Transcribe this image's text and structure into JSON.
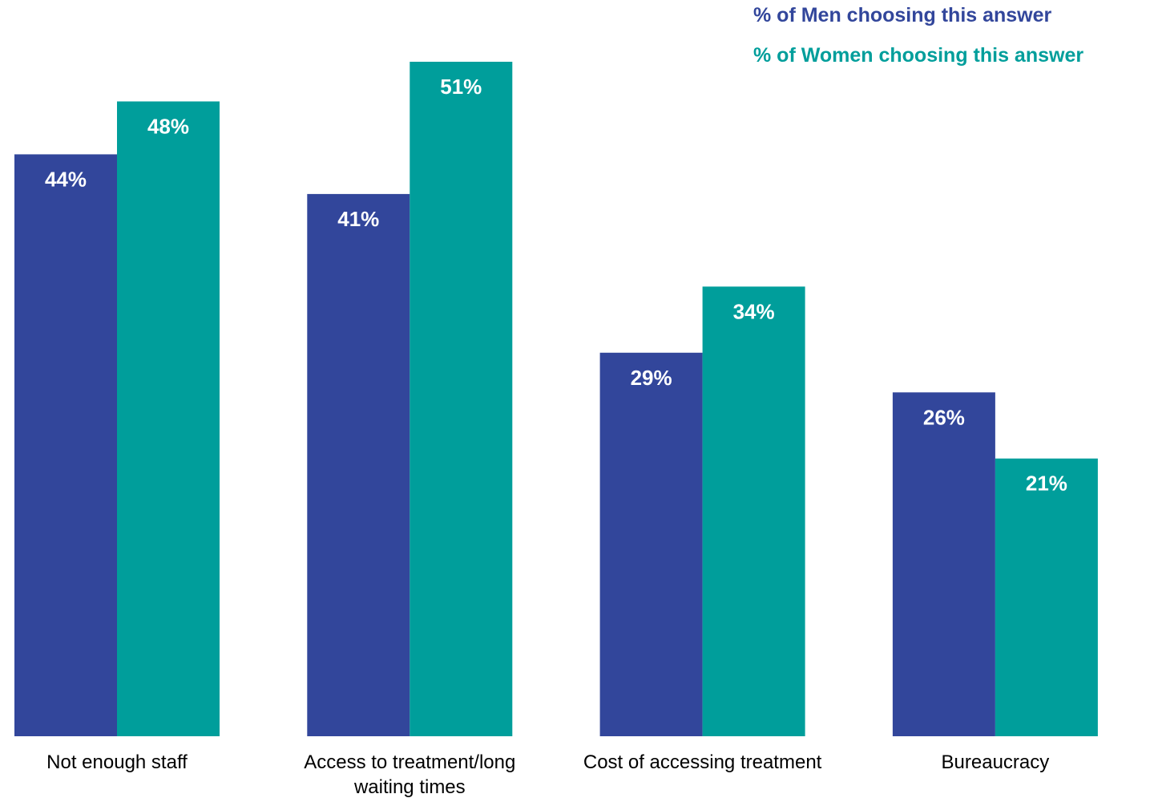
{
  "chart_data": {
    "type": "bar",
    "categories": [
      [
        "Not enough staff"
      ],
      [
        "Access to treatment/long",
        "waiting times"
      ],
      [
        "Cost of accessing treatment"
      ],
      [
        "Bureaucracy"
      ]
    ],
    "series": [
      {
        "name": "% of Men choosing this answer",
        "color": "#32469b",
        "values": [
          44,
          41,
          29,
          26
        ],
        "labels": [
          "44%",
          "41%",
          "29%",
          "26%"
        ]
      },
      {
        "name": "% of Women choosing this answer",
        "color": "#009e9b",
        "values": [
          48,
          51,
          34,
          21
        ],
        "labels": [
          "48%",
          "51%",
          "34%",
          "21%"
        ]
      }
    ],
    "title": "",
    "xlabel": "",
    "ylabel": "",
    "ylim": [
      0,
      51
    ],
    "grid": false,
    "legend": "top-right",
    "data_labels": "inside-top"
  }
}
